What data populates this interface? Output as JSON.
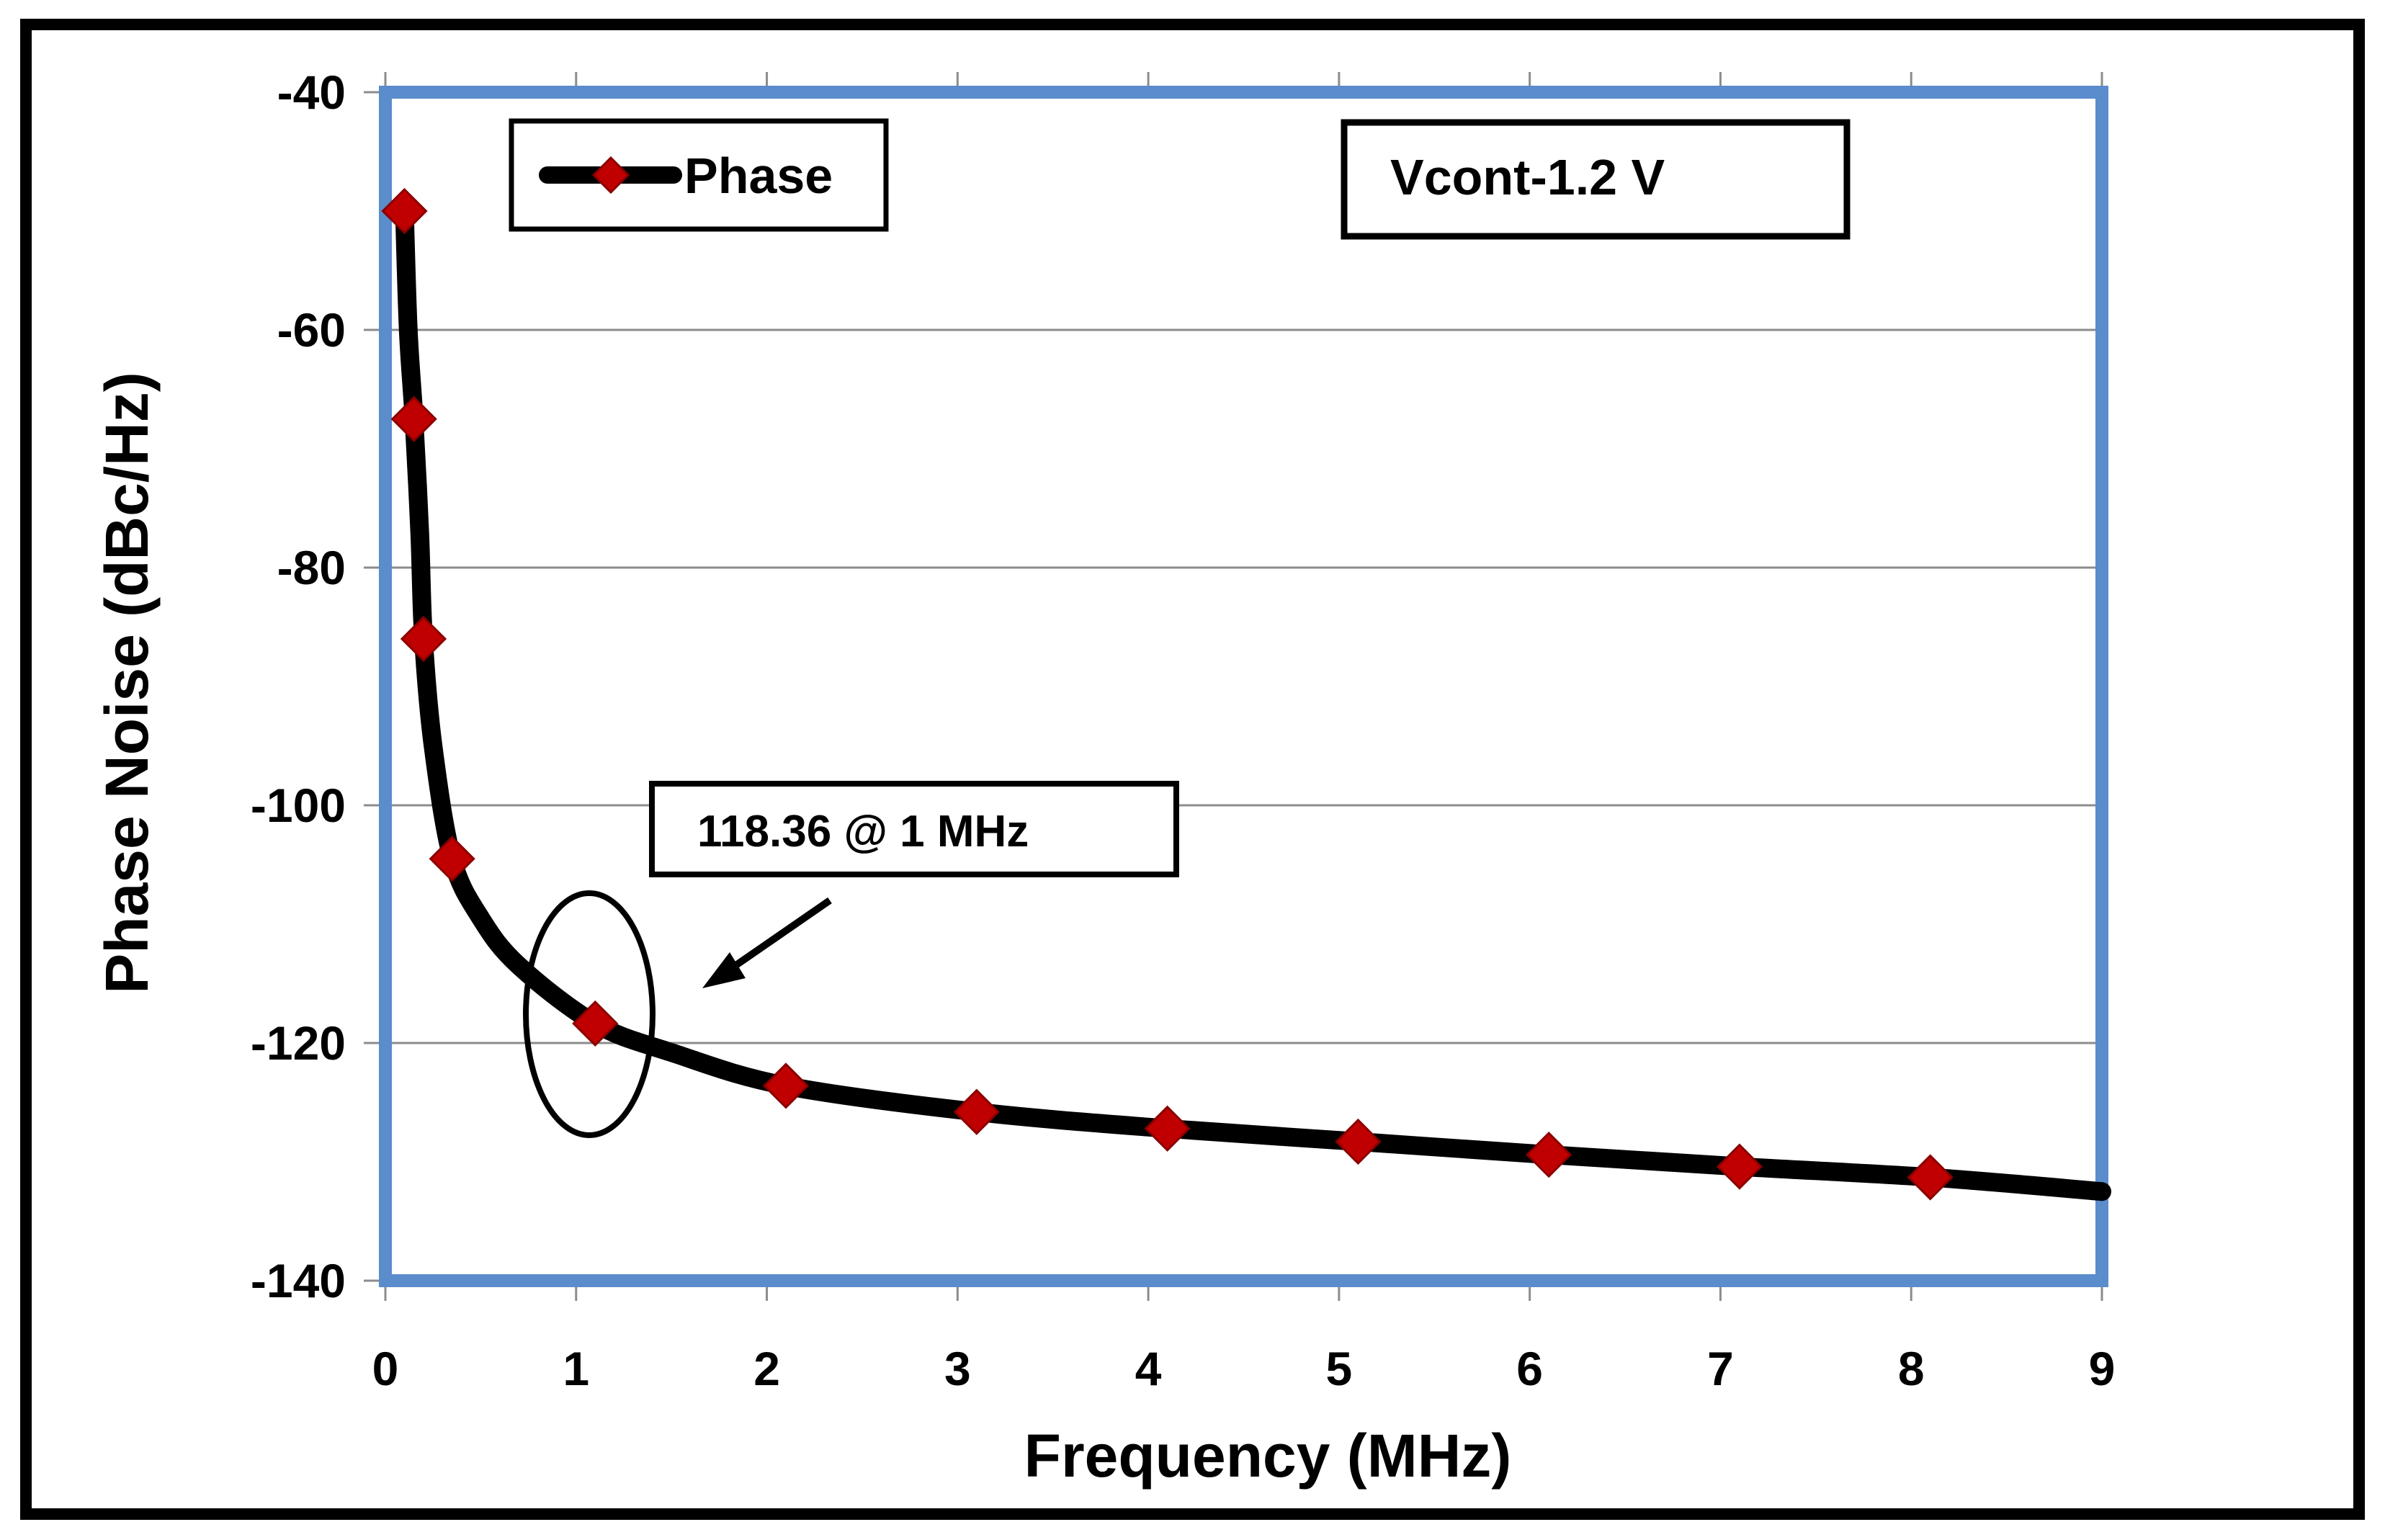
{
  "chart_data": {
    "type": "line",
    "xlabel": "Frequency (MHz)",
    "ylabel": "Phase Noise  (dBc/Hz)",
    "xlim": [
      0,
      9
    ],
    "ylim": [
      -140,
      -40
    ],
    "xticks": [
      0,
      1,
      2,
      3,
      4,
      5,
      6,
      7,
      8,
      9
    ],
    "yticks": [
      -40,
      -60,
      -80,
      -100,
      -120,
      -140
    ],
    "grid": "horizontal",
    "legend_position": "top-left",
    "series": [
      {
        "name": "Phase",
        "color": "#000000",
        "marker": "diamond",
        "marker_color": "#c00000",
        "curve": [
          [
            0.1,
            -50
          ],
          [
            0.12,
            -60
          ],
          [
            0.15,
            -67.5
          ],
          [
            0.18,
            -77
          ],
          [
            0.2,
            -86
          ],
          [
            0.25,
            -95
          ],
          [
            0.35,
            -104.5
          ],
          [
            0.5,
            -109.5
          ],
          [
            0.7,
            -113.5
          ],
          [
            1.1,
            -118.36
          ],
          [
            1.5,
            -120.8
          ],
          [
            2.1,
            -123.6
          ],
          [
            3.1,
            -125.8
          ],
          [
            4.1,
            -127.2
          ],
          [
            5.1,
            -128.3
          ],
          [
            6.1,
            -129.4
          ],
          [
            7.1,
            -130.4
          ],
          [
            8.1,
            -131.3
          ],
          [
            9.0,
            -132.5
          ]
        ],
        "points": [
          [
            0.1,
            -50
          ],
          [
            0.15,
            -67.5
          ],
          [
            0.2,
            -86
          ],
          [
            0.35,
            -104.5
          ],
          [
            1.1,
            -118.36
          ],
          [
            2.1,
            -123.6
          ],
          [
            3.1,
            -125.8
          ],
          [
            4.1,
            -127.2
          ],
          [
            5.1,
            -128.3
          ],
          [
            6.1,
            -129.4
          ],
          [
            7.1,
            -130.4
          ],
          [
            8.1,
            -131.3
          ]
        ]
      }
    ],
    "annotations": [
      {
        "text": "Vcont-1.2 V",
        "kind": "box"
      },
      {
        "text": "118.36 @ 1 MHz",
        "kind": "callout",
        "points_to": [
          1.1,
          -118.36
        ]
      }
    ],
    "colors": {
      "plot_border": "#5b8ccc",
      "outer_frame": "#000000",
      "grid": "#8c8c8c"
    }
  }
}
